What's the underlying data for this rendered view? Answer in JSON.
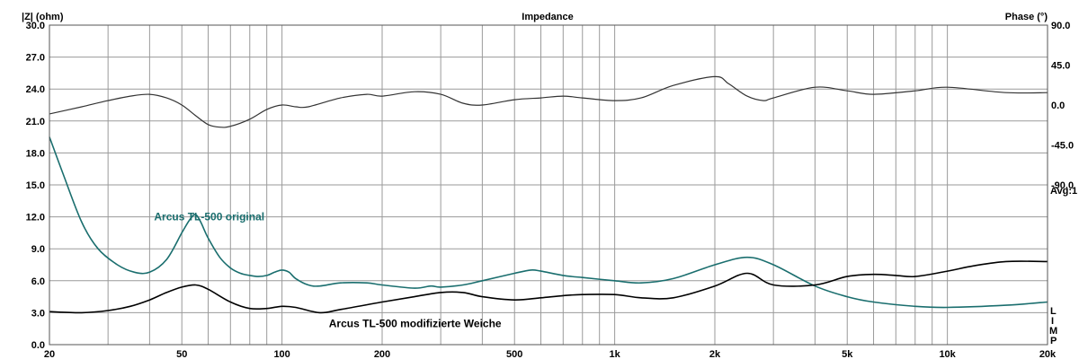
{
  "chart_data": {
    "type": "line",
    "title": "Impedance",
    "ylabel": "|Z| (ohm)",
    "y2label": "Phase (°)",
    "xscale": "log",
    "xlim": [
      20,
      20000
    ],
    "ylim": [
      0,
      30
    ],
    "y2lim": [
      -270,
      90
    ],
    "grid": true,
    "x_ticks": [
      20,
      50,
      100,
      200,
      500,
      1000,
      2000,
      5000,
      10000,
      20000
    ],
    "x_tick_labels": [
      "20",
      "50",
      "100",
      "200",
      "500",
      "1k",
      "2k",
      "5k",
      "10k",
      "20k"
    ],
    "y_ticks": [
      0,
      3,
      6,
      9,
      12,
      15,
      18,
      21,
      24,
      27,
      30
    ],
    "y_tick_labels": [
      "0.0",
      "3.0",
      "6.0",
      "9.0",
      "12.0",
      "15.0",
      "18.0",
      "21.0",
      "24.0",
      "27.0",
      "30.0"
    ],
    "y2_ticks": [
      90,
      45,
      0,
      -45,
      -90
    ],
    "y2_tick_labels": [
      "90.0",
      "45.0",
      "0.0",
      "-45.0",
      "-90.0"
    ],
    "side_label_avg": "Avg:1",
    "side_label_limp": [
      "L",
      "I",
      "M",
      "P"
    ],
    "series": [
      {
        "name": "Arcus TL-500 original",
        "color": "#1a6e6e",
        "x": [
          20,
          22,
          25,
          28,
          32,
          36,
          40,
          45,
          50,
          53,
          55,
          57,
          60,
          65,
          70,
          75,
          80,
          85,
          90,
          95,
          100,
          105,
          110,
          120,
          130,
          150,
          180,
          200,
          250,
          280,
          300,
          350,
          400,
          500,
          560,
          600,
          700,
          800,
          1000,
          1200,
          1500,
          2000,
          2500,
          3000,
          4000,
          5000,
          6000,
          8000,
          10000,
          15000,
          20000
        ],
        "y": [
          19.5,
          16.0,
          11.5,
          9.0,
          7.5,
          6.8,
          6.8,
          8.0,
          10.5,
          11.8,
          12.2,
          11.5,
          10.0,
          8.2,
          7.2,
          6.7,
          6.5,
          6.4,
          6.5,
          6.8,
          7.0,
          6.8,
          6.2,
          5.6,
          5.5,
          5.8,
          5.8,
          5.6,
          5.3,
          5.5,
          5.4,
          5.6,
          6.0,
          6.7,
          7.0,
          6.9,
          6.5,
          6.3,
          6.0,
          5.8,
          6.2,
          7.5,
          8.2,
          7.5,
          5.5,
          4.5,
          4.0,
          3.6,
          3.5,
          3.7,
          4.0
        ]
      },
      {
        "name": "Arcus TL-500 modifizierte Weiche",
        "color": "#000000",
        "x": [
          20,
          25,
          30,
          35,
          40,
          45,
          50,
          55,
          60,
          70,
          80,
          90,
          100,
          110,
          130,
          150,
          200,
          250,
          300,
          350,
          400,
          500,
          600,
          700,
          800,
          1000,
          1200,
          1500,
          2000,
          2500,
          3000,
          4000,
          5000,
          6000,
          7000,
          8000,
          10000,
          12000,
          15000,
          20000
        ],
        "y": [
          3.1,
          3.0,
          3.2,
          3.6,
          4.2,
          4.9,
          5.4,
          5.6,
          5.2,
          4.0,
          3.4,
          3.4,
          3.6,
          3.5,
          3.0,
          3.3,
          4.0,
          4.5,
          4.9,
          4.9,
          4.5,
          4.2,
          4.4,
          4.6,
          4.7,
          4.7,
          4.4,
          4.4,
          5.5,
          6.7,
          5.6,
          5.6,
          6.4,
          6.6,
          6.5,
          6.4,
          6.9,
          7.4,
          7.8,
          7.8
        ]
      },
      {
        "name": "Phase",
        "color": "#333333",
        "axis": "y2",
        "x": [
          20,
          25,
          30,
          35,
          40,
          45,
          50,
          55,
          60,
          65,
          70,
          80,
          90,
          100,
          110,
          120,
          150,
          180,
          200,
          250,
          300,
          350,
          400,
          500,
          600,
          700,
          800,
          1000,
          1200,
          1500,
          2000,
          2200,
          2500,
          2800,
          3000,
          4000,
          5000,
          6000,
          8000,
          10000,
          15000,
          20000
        ],
        "y": [
          -10,
          -2,
          5,
          10,
          12,
          8,
          0,
          -12,
          -22,
          -25,
          -24,
          -16,
          -5,
          0,
          -2,
          -2,
          8,
          12,
          10,
          15,
          12,
          2,
          0,
          6,
          8,
          10,
          8,
          5,
          8,
          22,
          32,
          24,
          10,
          5,
          8,
          20,
          16,
          12,
          16,
          20,
          14,
          14
        ]
      }
    ],
    "annotations": [
      {
        "text": "Arcus TL-500 original",
        "x": 40,
        "y": 12
      },
      {
        "text": "Arcus TL-500 modifizierte Weiche",
        "x": 130,
        "y": 2
      }
    ]
  }
}
